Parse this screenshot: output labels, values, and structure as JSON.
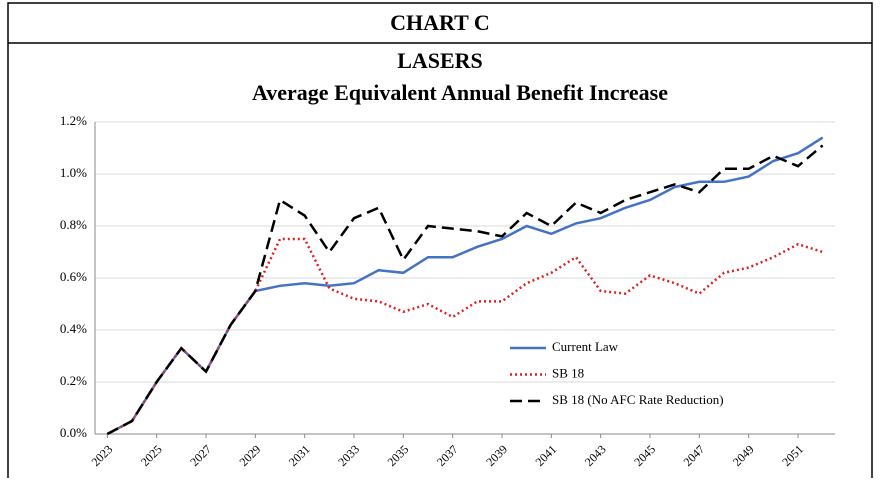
{
  "header": "CHART C",
  "chart_data": {
    "type": "line",
    "title": "LASERS",
    "subtitle": "Average Equivalent Annual Benefit Increase",
    "x": [
      2023,
      2024,
      2025,
      2026,
      2027,
      2028,
      2029,
      2030,
      2031,
      2032,
      2033,
      2034,
      2035,
      2036,
      2037,
      2038,
      2039,
      2040,
      2041,
      2042,
      2043,
      2044,
      2045,
      2046,
      2047,
      2048,
      2049,
      2050,
      2051,
      2052
    ],
    "xlim": [
      2022.5,
      2052.5
    ],
    "xticks": [
      2023,
      2025,
      2027,
      2029,
      2031,
      2033,
      2035,
      2037,
      2039,
      2041,
      2043,
      2045,
      2047,
      2049,
      2051
    ],
    "ylim": [
      0,
      1.2
    ],
    "yticks": [
      {
        "value": 0,
        "label": "0.0%"
      },
      {
        "value": 0.2,
        "label": "0.2%"
      },
      {
        "value": 0.4,
        "label": "0.4%"
      },
      {
        "value": 0.6,
        "label": "0.6%"
      },
      {
        "value": 0.8,
        "label": "0.8%"
      },
      {
        "value": 1.0,
        "label": "1.0%"
      },
      {
        "value": 1.2,
        "label": "1.2%"
      }
    ],
    "grid": true,
    "legend": "lower right",
    "series": [
      {
        "name": "Current Law",
        "color": "#4472c4",
        "style": "solid",
        "values": [
          0.0,
          0.05,
          0.2,
          0.33,
          0.24,
          0.42,
          0.55,
          0.57,
          0.58,
          0.57,
          0.58,
          0.63,
          0.62,
          0.68,
          0.68,
          0.72,
          0.75,
          0.8,
          0.77,
          0.81,
          0.83,
          0.87,
          0.9,
          0.95,
          0.97,
          0.97,
          0.99,
          1.05,
          1.08,
          1.14
        ]
      },
      {
        "name": "SB 18",
        "color": "#e02020",
        "style": "dotted",
        "values": [
          0.0,
          0.05,
          0.2,
          0.33,
          0.24,
          0.42,
          0.55,
          0.75,
          0.75,
          0.56,
          0.52,
          0.51,
          0.47,
          0.5,
          0.45,
          0.51,
          0.51,
          0.58,
          0.62,
          0.68,
          0.55,
          0.54,
          0.61,
          0.58,
          0.54,
          0.62,
          0.64,
          0.68,
          0.73,
          0.7
        ]
      },
      {
        "name": "SB 18 (No AFC Rate Reduction)",
        "color": "#000000",
        "style": "dashed",
        "values": [
          0.0,
          0.05,
          0.2,
          0.33,
          0.24,
          0.42,
          0.55,
          0.9,
          0.84,
          0.7,
          0.83,
          0.87,
          0.67,
          0.8,
          0.79,
          0.78,
          0.76,
          0.85,
          0.8,
          0.89,
          0.85,
          0.9,
          0.93,
          0.96,
          0.93,
          1.02,
          1.02,
          1.07,
          1.03,
          1.11
        ]
      }
    ]
  }
}
